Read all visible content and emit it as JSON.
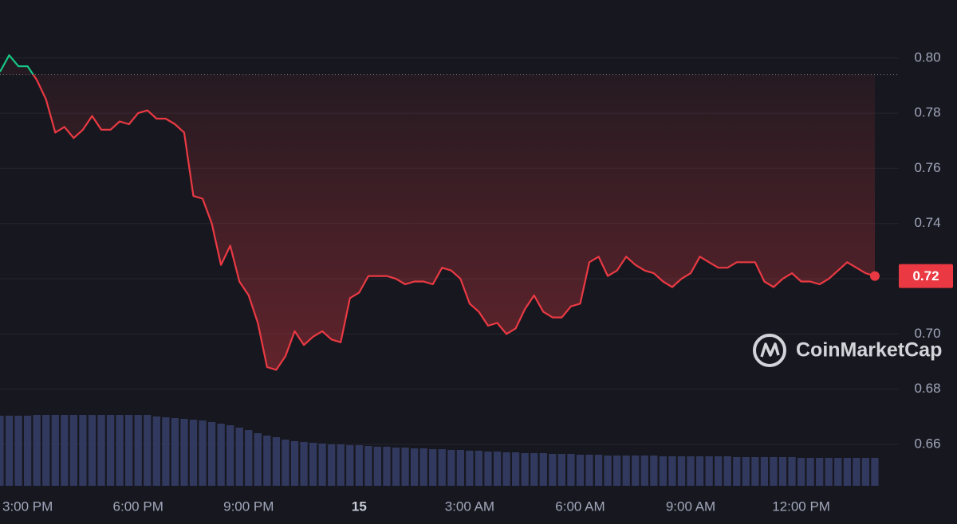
{
  "chart_data": {
    "type": "line",
    "x": [
      14.25,
      14.5,
      14.75,
      15,
      15.25,
      15.5,
      15.75,
      16,
      16.25,
      16.5,
      16.75,
      17,
      17.25,
      17.5,
      17.75,
      18,
      18.25,
      18.5,
      18.75,
      19,
      19.25,
      19.5,
      19.75,
      20,
      20.25,
      20.5,
      20.75,
      21,
      21.25,
      21.5,
      21.75,
      22,
      22.25,
      22.5,
      22.75,
      23,
      23.25,
      23.5,
      23.75,
      24,
      24.25,
      24.5,
      24.75,
      25,
      25.25,
      25.5,
      25.75,
      26,
      26.25,
      26.5,
      26.75,
      27,
      27.25,
      27.5,
      27.75,
      28,
      28.25,
      28.5,
      28.75,
      29,
      29.25,
      29.5,
      29.75,
      30,
      30.25,
      30.5,
      30.75,
      31,
      31.25,
      31.5,
      31.75,
      32,
      32.25,
      32.5,
      32.75,
      33,
      33.25,
      33.5,
      33.75,
      34,
      34.25,
      34.5,
      34.75,
      35,
      35.25,
      35.5,
      35.75,
      36,
      36.25,
      36.5,
      36.75,
      37,
      37.25,
      37.5,
      37.75,
      38
    ],
    "values": [
      0.795,
      0.801,
      0.797,
      0.797,
      0.792,
      0.785,
      0.773,
      0.775,
      0.771,
      0.774,
      0.779,
      0.774,
      0.774,
      0.777,
      0.776,
      0.78,
      0.781,
      0.778,
      0.778,
      0.776,
      0.773,
      0.75,
      0.749,
      0.74,
      0.725,
      0.732,
      0.719,
      0.714,
      0.704,
      0.688,
      0.687,
      0.692,
      0.701,
      0.696,
      0.699,
      0.701,
      0.698,
      0.697,
      0.713,
      0.715,
      0.721,
      0.721,
      0.721,
      0.72,
      0.718,
      0.719,
      0.719,
      0.718,
      0.724,
      0.723,
      0.72,
      0.711,
      0.708,
      0.703,
      0.704,
      0.7,
      0.702,
      0.709,
      0.714,
      0.708,
      0.706,
      0.706,
      0.71,
      0.711,
      0.726,
      0.728,
      0.721,
      0.723,
      0.728,
      0.725,
      0.723,
      0.722,
      0.719,
      0.717,
      0.72,
      0.722,
      0.728,
      0.726,
      0.724,
      0.724,
      0.726,
      0.726,
      0.726,
      0.719,
      0.717,
      0.72,
      0.722,
      0.719,
      0.719,
      0.718,
      0.72,
      0.723,
      0.726,
      0.724,
      0.722,
      0.721
    ],
    "volume": [
      88,
      88,
      88,
      88,
      89,
      89,
      89,
      89,
      89,
      89,
      89,
      89,
      89,
      89,
      89,
      89,
      89,
      87,
      86,
      85,
      84,
      83,
      82,
      80,
      78,
      76,
      73,
      70,
      66,
      63,
      61,
      58,
      56,
      55,
      54,
      53,
      52,
      52,
      51,
      51,
      50,
      49,
      49,
      48,
      48,
      47,
      47,
      46,
      46,
      45,
      45,
      44,
      44,
      43,
      43,
      42,
      42,
      41,
      41,
      41,
      40,
      40,
      40,
      39,
      39,
      39,
      38,
      38,
      38,
      38,
      38,
      38,
      37,
      37,
      37,
      37,
      37,
      37,
      37,
      37,
      36,
      36,
      36,
      36,
      36,
      36,
      36,
      35,
      35,
      35,
      35,
      35,
      35,
      35,
      35,
      35
    ],
    "volume_lim": [
      0,
      100
    ],
    "reference": 0.794,
    "last_value_label": "0.72",
    "up_color": "#16c784",
    "down_color": "#ea3943",
    "volume_color": "#3b4475",
    "xlim": [
      14.25,
      38.65
    ],
    "xticks": [
      {
        "value": 15,
        "label": "3:00 PM"
      },
      {
        "value": 18,
        "label": "6:00 PM"
      },
      {
        "value": 21,
        "label": "9:00 PM"
      },
      {
        "value": 24,
        "label": "15"
      },
      {
        "value": 27,
        "label": "3:00 AM"
      },
      {
        "value": 30,
        "label": "6:00 AM"
      },
      {
        "value": 33,
        "label": "9:00 AM"
      },
      {
        "value": 36,
        "label": "12:00 PM"
      }
    ],
    "ylim": [
      0.645,
      0.821
    ],
    "yticks": [
      0.66,
      0.68,
      {
        "value": 0.7,
        "label": "0.70"
      },
      0.72,
      0.74,
      0.76,
      0.78,
      {
        "value": 0.8,
        "label": "0.80"
      }
    ],
    "grid": true,
    "watermark": "CoinMarketCap"
  }
}
